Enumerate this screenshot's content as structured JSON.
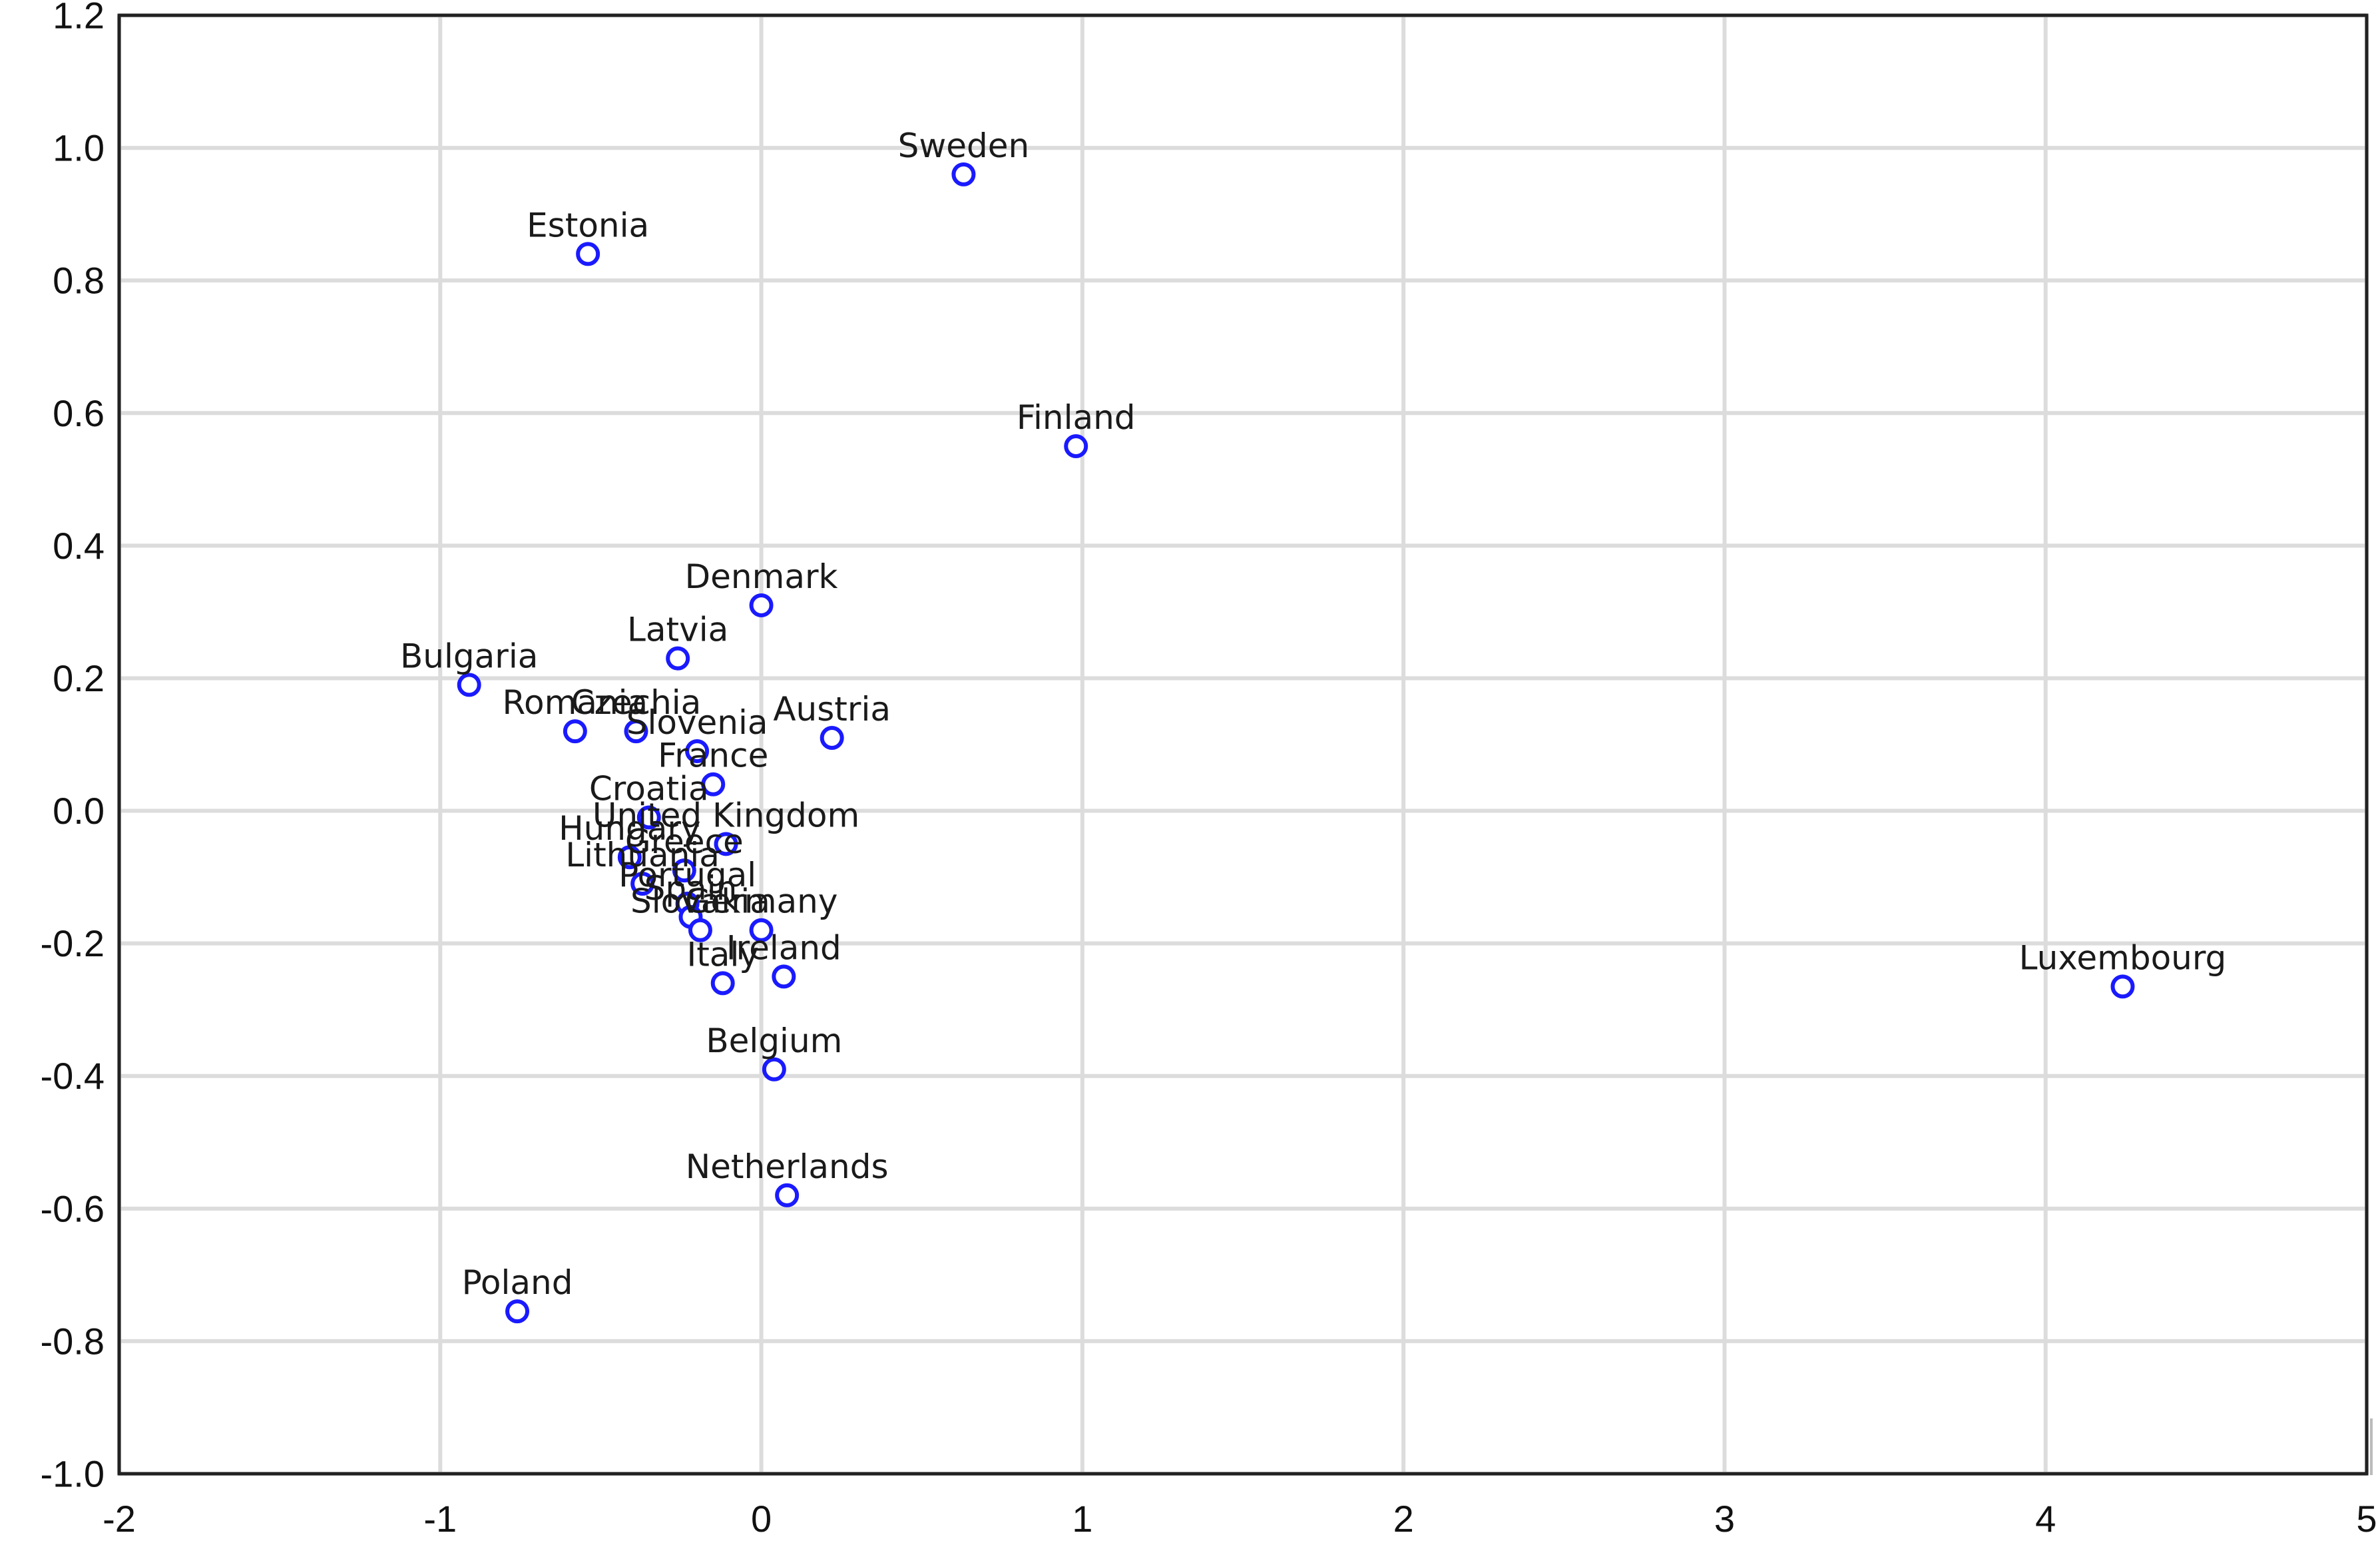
{
  "chart_data": {
    "type": "scatter",
    "title": "",
    "xlabel": "",
    "ylabel": "",
    "xlim": [
      -2,
      5
    ],
    "ylim": [
      -1.0,
      1.2
    ],
    "grid": true,
    "x_ticks": [
      -2,
      -1,
      0,
      1,
      2,
      3,
      4,
      5
    ],
    "x_tick_labels": [
      "-2",
      "-1",
      "0",
      "1",
      "2",
      "3",
      "4",
      "5"
    ],
    "y_ticks": [
      -1.0,
      -0.8,
      -0.6,
      -0.4,
      -0.2,
      0.0,
      0.2,
      0.4,
      0.6,
      0.8,
      1.0,
      1.2
    ],
    "y_tick_labels": [
      "-1.0",
      "-0.8",
      "-0.6",
      "-0.4",
      "-0.2",
      "0.0",
      "0.2",
      "0.4",
      "0.6",
      "0.8",
      "1.0",
      "1.2"
    ],
    "marker_color": "#1a1aff",
    "points": [
      {
        "label": "Sweden",
        "x": 0.63,
        "y": 0.96
      },
      {
        "label": "Estonia",
        "x": -0.54,
        "y": 0.84
      },
      {
        "label": "Finland",
        "x": 0.98,
        "y": 0.55
      },
      {
        "label": "Denmark",
        "x": 0.0,
        "y": 0.31
      },
      {
        "label": "Latvia",
        "x": -0.26,
        "y": 0.23
      },
      {
        "label": "Bulgaria",
        "x": -0.91,
        "y": 0.19
      },
      {
        "label": "Romania",
        "x": -0.58,
        "y": 0.12
      },
      {
        "label": "Czechia",
        "x": -0.39,
        "y": 0.12
      },
      {
        "label": "Slovenia",
        "x": -0.2,
        "y": 0.09
      },
      {
        "label": "Austria",
        "x": 0.22,
        "y": 0.11
      },
      {
        "label": "France",
        "x": -0.15,
        "y": 0.04
      },
      {
        "label": "Croatia",
        "x": -0.35,
        "y": -0.01
      },
      {
        "label": "United Kingdom",
        "x": -0.11,
        "y": -0.05
      },
      {
        "label": "Hungary",
        "x": -0.41,
        "y": -0.07
      },
      {
        "label": "Greece",
        "x": -0.24,
        "y": -0.09
      },
      {
        "label": "Lithuania",
        "x": -0.37,
        "y": -0.11
      },
      {
        "label": "Portugal",
        "x": -0.23,
        "y": -0.14
      },
      {
        "label": "Spain",
        "x": -0.22,
        "y": -0.16
      },
      {
        "label": "Germany",
        "x": 0.0,
        "y": -0.18
      },
      {
        "label": "Slovakia",
        "x": -0.19,
        "y": -0.18
      },
      {
        "label": "Ireland",
        "x": 0.07,
        "y": -0.25
      },
      {
        "label": "Italy",
        "x": -0.12,
        "y": -0.26
      },
      {
        "label": "Luxembourg",
        "x": 4.24,
        "y": -0.265
      },
      {
        "label": "Belgium",
        "x": 0.04,
        "y": -0.39
      },
      {
        "label": "Netherlands",
        "x": 0.08,
        "y": -0.58
      },
      {
        "label": "Poland",
        "x": -0.76,
        "y": -0.755
      }
    ]
  }
}
